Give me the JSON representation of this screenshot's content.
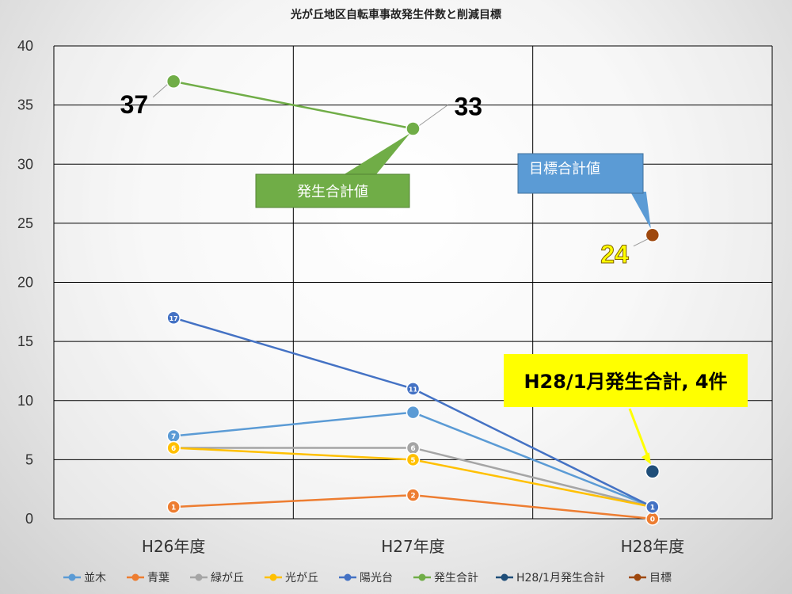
{
  "chart_data": {
    "type": "line",
    "title": "光が丘地区自転車事故発生件数と削減目標",
    "categories": [
      "H26年度",
      "H27年度",
      "H28年度"
    ],
    "ylim": [
      0,
      40
    ],
    "yticks": [
      0,
      5,
      10,
      15,
      20,
      25,
      30,
      35,
      40
    ],
    "grid": true,
    "legend_position": "bottom",
    "series": [
      {
        "name": "並木",
        "color": "#5b9bd5",
        "values": [
          7,
          9,
          1
        ],
        "labels": [
          "7",
          "",
          ""
        ]
      },
      {
        "name": "青葉",
        "color": "#ed7d31",
        "values": [
          1,
          2,
          0
        ],
        "labels": [
          "1",
          "2",
          "0"
        ]
      },
      {
        "name": "緑が丘",
        "color": "#a5a5a5",
        "values": [
          6,
          6,
          1
        ],
        "labels": [
          "",
          "6",
          ""
        ]
      },
      {
        "name": "光が丘",
        "color": "#ffc000",
        "values": [
          6,
          5,
          1
        ],
        "labels": [
          "6",
          "5",
          ""
        ]
      },
      {
        "name": "陽光台",
        "color": "#4472c4",
        "values": [
          17,
          11,
          1
        ],
        "labels": [
          "17",
          "11",
          "1"
        ]
      },
      {
        "name": "発生合計",
        "color": "#70ad47",
        "values": [
          37,
          33,
          null
        ],
        "labels": [
          "37",
          "33",
          ""
        ]
      },
      {
        "name": "H28/1月発生合計",
        "color": "#1f4e79",
        "values": [
          null,
          null,
          4
        ],
        "labels": [
          "",
          "",
          ""
        ]
      },
      {
        "name": "目標",
        "color": "#9e480e",
        "values": [
          null,
          null,
          24
        ],
        "labels": [
          "",
          "",
          "24"
        ]
      }
    ],
    "annotations": [
      {
        "text": "発生合計値",
        "color": "#70ad47"
      },
      {
        "text": "目標合計値",
        "color": "#5b9bd5"
      },
      {
        "text": "H28/1月発生合計, 4件",
        "color": "#ffff00"
      }
    ]
  }
}
